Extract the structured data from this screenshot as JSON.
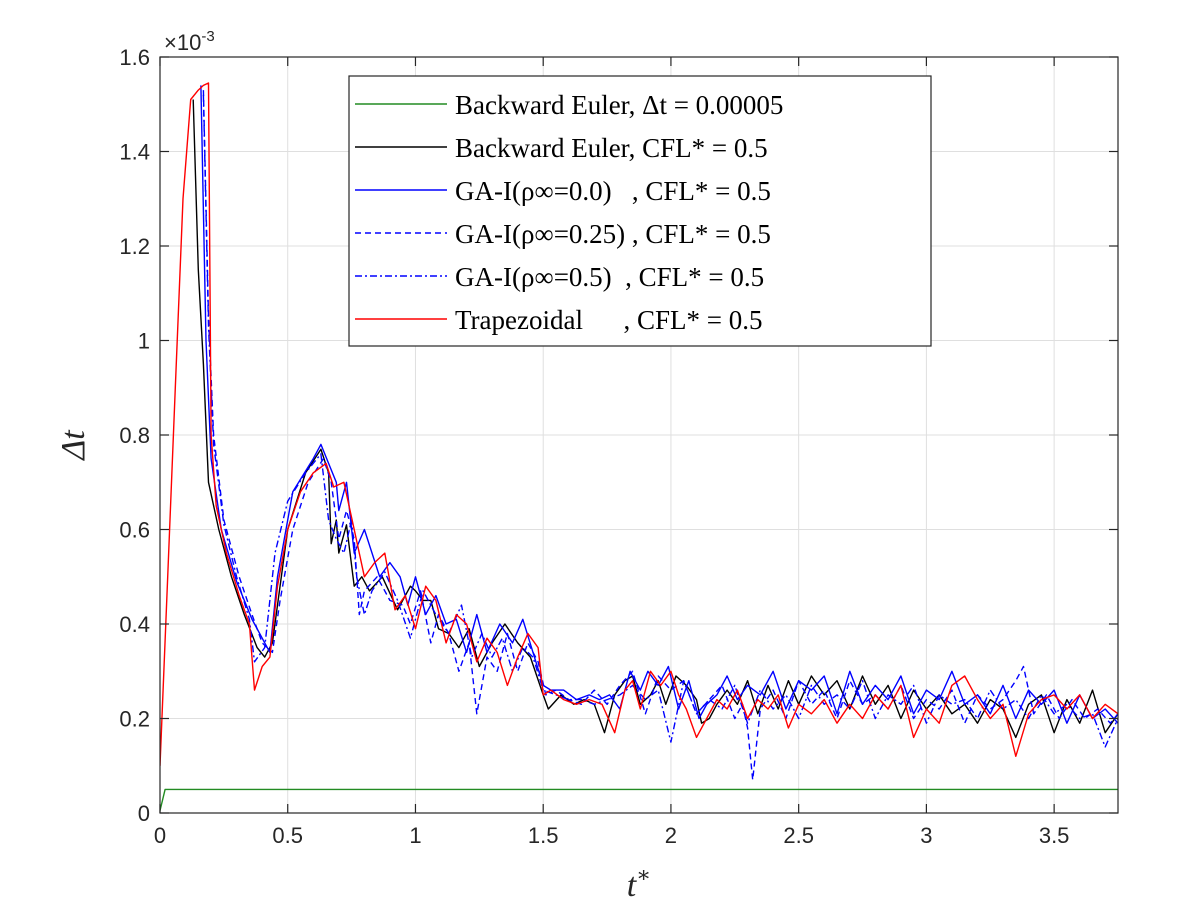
{
  "chart_data": {
    "type": "line",
    "title": "",
    "xlabel": "t*",
    "ylabel": "Δt",
    "y_scale_label": "×10^-3",
    "xlim": [
      0,
      3.75
    ],
    "ylim": [
      0,
      1.6
    ],
    "grid": true,
    "legend_position": "top-center",
    "x_ticks": [
      "0",
      "0.5",
      "1",
      "1.5",
      "2",
      "2.5",
      "3",
      "3.5"
    ],
    "y_ticks": [
      "0",
      "0.2",
      "0.4",
      "0.6",
      "0.8",
      "1",
      "1.2",
      "1.4",
      "1.6"
    ],
    "series": [
      {
        "name": "Backward Euler, Δt = 0.00005",
        "color": "#228B22",
        "dash": "solid",
        "x": [
          0.0,
          0.02,
          3.75
        ],
        "y": [
          0.005,
          0.05,
          0.05
        ]
      },
      {
        "name": "Backward Euler, CFL* = 0.5",
        "color": "#000000",
        "dash": "solid",
        "x": [
          0.13,
          0.15,
          0.17,
          0.19,
          0.23,
          0.28,
          0.33,
          0.38,
          0.41,
          0.44,
          0.5,
          0.57,
          0.63,
          0.66,
          0.67,
          0.69,
          0.7,
          0.73,
          0.76,
          0.79,
          0.82,
          0.87,
          0.93,
          0.98,
          1.0,
          1.03,
          1.06,
          1.09,
          1.13,
          1.17,
          1.21,
          1.25,
          1.3,
          1.35,
          1.4,
          1.45,
          1.5,
          1.52,
          1.57,
          1.62,
          1.66,
          1.7,
          1.74,
          1.78,
          1.82,
          1.85,
          1.88,
          1.92,
          1.95,
          1.98,
          2.02,
          2.06,
          2.1,
          2.12,
          2.15,
          2.18,
          2.22,
          2.26,
          2.3,
          2.34,
          2.38,
          2.42,
          2.46,
          2.5,
          2.55,
          2.6,
          2.65,
          2.7,
          2.75,
          2.8,
          2.85,
          2.9,
          2.95,
          3.0,
          3.05,
          3.1,
          3.15,
          3.2,
          3.25,
          3.3,
          3.35,
          3.4,
          3.45,
          3.5,
          3.55,
          3.6,
          3.65,
          3.7,
          3.75
        ],
        "y": [
          1.51,
          1.15,
          0.95,
          0.7,
          0.6,
          0.5,
          0.42,
          0.35,
          0.33,
          0.36,
          0.6,
          0.72,
          0.77,
          0.72,
          0.57,
          0.62,
          0.55,
          0.61,
          0.48,
          0.5,
          0.47,
          0.5,
          0.43,
          0.48,
          0.47,
          0.45,
          0.45,
          0.39,
          0.38,
          0.35,
          0.39,
          0.31,
          0.36,
          0.4,
          0.36,
          0.33,
          0.25,
          0.22,
          0.25,
          0.23,
          0.24,
          0.23,
          0.17,
          0.25,
          0.28,
          0.29,
          0.23,
          0.25,
          0.28,
          0.23,
          0.29,
          0.27,
          0.24,
          0.19,
          0.2,
          0.23,
          0.26,
          0.23,
          0.28,
          0.21,
          0.27,
          0.22,
          0.28,
          0.23,
          0.29,
          0.25,
          0.28,
          0.22,
          0.29,
          0.23,
          0.27,
          0.2,
          0.26,
          0.22,
          0.25,
          0.21,
          0.23,
          0.19,
          0.24,
          0.22,
          0.16,
          0.23,
          0.25,
          0.17,
          0.24,
          0.19,
          0.26,
          0.17,
          0.21
        ]
      },
      {
        "name": "GA-I(ρ∞=0.0) , CFL* = 0.5",
        "color": "#0000FF",
        "dash": "solid",
        "x": [
          0.16,
          0.18,
          0.2,
          0.24,
          0.3,
          0.36,
          0.4,
          0.43,
          0.46,
          0.52,
          0.6,
          0.63,
          0.66,
          0.69,
          0.7,
          0.73,
          0.76,
          0.8,
          0.86,
          0.9,
          0.94,
          0.97,
          1.0,
          1.04,
          1.08,
          1.12,
          1.16,
          1.2,
          1.24,
          1.28,
          1.33,
          1.38,
          1.42,
          1.46,
          1.5,
          1.53,
          1.58,
          1.63,
          1.68,
          1.72,
          1.76,
          1.8,
          1.84,
          1.88,
          1.91,
          1.95,
          1.99,
          2.03,
          2.07,
          2.11,
          2.14,
          2.18,
          2.22,
          2.26,
          2.3,
          2.35,
          2.4,
          2.45,
          2.5,
          2.55,
          2.6,
          2.65,
          2.7,
          2.75,
          2.8,
          2.85,
          2.9,
          2.95,
          3.0,
          3.05,
          3.1,
          3.15,
          3.2,
          3.25,
          3.3,
          3.35,
          3.4,
          3.45,
          3.5,
          3.55,
          3.6,
          3.65,
          3.7,
          3.75
        ],
        "y": [
          1.54,
          1.0,
          0.75,
          0.6,
          0.49,
          0.41,
          0.37,
          0.34,
          0.5,
          0.68,
          0.75,
          0.78,
          0.74,
          0.7,
          0.64,
          0.7,
          0.55,
          0.6,
          0.5,
          0.53,
          0.5,
          0.44,
          0.5,
          0.42,
          0.46,
          0.4,
          0.41,
          0.34,
          0.42,
          0.34,
          0.4,
          0.36,
          0.41,
          0.34,
          0.27,
          0.26,
          0.26,
          0.24,
          0.25,
          0.24,
          0.25,
          0.22,
          0.3,
          0.26,
          0.3,
          0.27,
          0.31,
          0.22,
          0.28,
          0.2,
          0.23,
          0.25,
          0.29,
          0.24,
          0.27,
          0.25,
          0.3,
          0.22,
          0.28,
          0.26,
          0.29,
          0.21,
          0.3,
          0.23,
          0.27,
          0.24,
          0.29,
          0.21,
          0.26,
          0.24,
          0.3,
          0.23,
          0.25,
          0.21,
          0.27,
          0.2,
          0.26,
          0.23,
          0.26,
          0.19,
          0.25,
          0.2,
          0.22,
          0.19
        ]
      },
      {
        "name": "GA-I(ρ∞=0.25) , CFL* = 0.5",
        "color": "#0000FF",
        "dash": "dashed",
        "x": [
          0.17,
          0.19,
          0.21,
          0.25,
          0.31,
          0.36,
          0.4,
          0.44,
          0.47,
          0.52,
          0.58,
          0.64,
          0.67,
          0.7,
          0.73,
          0.76,
          0.78,
          0.8,
          0.85,
          0.9,
          0.95,
          0.98,
          1.02,
          1.06,
          1.09,
          1.13,
          1.17,
          1.21,
          1.24,
          1.28,
          1.32,
          1.36,
          1.4,
          1.44,
          1.48,
          1.51,
          1.55,
          1.6,
          1.65,
          1.7,
          1.75,
          1.8,
          1.85,
          1.9,
          1.95,
          2.0,
          2.05,
          2.1,
          2.15,
          2.2,
          2.25,
          2.28,
          2.3,
          2.32,
          2.35,
          2.4,
          2.45,
          2.5,
          2.55,
          2.6,
          2.65,
          2.7,
          2.75,
          2.8,
          2.85,
          2.9,
          2.95,
          3.0,
          3.05,
          3.1,
          3.15,
          3.2,
          3.25,
          3.3,
          3.35,
          3.38,
          3.42,
          3.47,
          3.52,
          3.57,
          3.62,
          3.67,
          3.72,
          3.75
        ],
        "y": [
          1.53,
          1.05,
          0.8,
          0.62,
          0.5,
          0.42,
          0.36,
          0.34,
          0.45,
          0.6,
          0.7,
          0.75,
          0.7,
          0.58,
          0.64,
          0.58,
          0.42,
          0.47,
          0.5,
          0.45,
          0.44,
          0.4,
          0.47,
          0.36,
          0.42,
          0.38,
          0.3,
          0.36,
          0.21,
          0.33,
          0.3,
          0.38,
          0.3,
          0.36,
          0.32,
          0.25,
          0.26,
          0.24,
          0.23,
          0.26,
          0.23,
          0.27,
          0.3,
          0.21,
          0.29,
          0.26,
          0.28,
          0.21,
          0.24,
          0.27,
          0.2,
          0.23,
          0.18,
          0.07,
          0.22,
          0.26,
          0.2,
          0.28,
          0.23,
          0.26,
          0.2,
          0.28,
          0.23,
          0.25,
          0.22,
          0.27,
          0.2,
          0.24,
          0.22,
          0.26,
          0.19,
          0.25,
          0.22,
          0.24,
          0.28,
          0.31,
          0.21,
          0.25,
          0.2,
          0.24,
          0.2,
          0.22,
          0.19,
          0.21
        ]
      },
      {
        "name": "GA-I(ρ∞=0.5) , CFL* = 0.5",
        "color": "#0000FF",
        "dash": "dashdot",
        "x": [
          0.17,
          0.19,
          0.21,
          0.25,
          0.3,
          0.35,
          0.37,
          0.41,
          0.45,
          0.5,
          0.57,
          0.63,
          0.66,
          0.69,
          0.72,
          0.75,
          0.77,
          0.8,
          0.83,
          0.88,
          0.93,
          0.98,
          1.03,
          1.08,
          1.13,
          1.18,
          1.22,
          1.26,
          1.3,
          1.34,
          1.38,
          1.42,
          1.46,
          1.5,
          1.55,
          1.6,
          1.65,
          1.7,
          1.75,
          1.8,
          1.85,
          1.9,
          1.95,
          2.0,
          2.05,
          2.1,
          2.15,
          2.2,
          2.25,
          2.3,
          2.35,
          2.4,
          2.45,
          2.5,
          2.55,
          2.6,
          2.65,
          2.7,
          2.75,
          2.8,
          2.85,
          2.9,
          2.95,
          3.0,
          3.05,
          3.1,
          3.15,
          3.2,
          3.25,
          3.3,
          3.35,
          3.4,
          3.45,
          3.5,
          3.55,
          3.6,
          3.65,
          3.7,
          3.75
        ],
        "y": [
          1.52,
          1.03,
          0.78,
          0.61,
          0.5,
          0.41,
          0.32,
          0.35,
          0.55,
          0.66,
          0.72,
          0.76,
          0.62,
          0.58,
          0.55,
          0.62,
          0.5,
          0.42,
          0.47,
          0.51,
          0.45,
          0.37,
          0.47,
          0.42,
          0.38,
          0.44,
          0.33,
          0.38,
          0.33,
          0.37,
          0.3,
          0.35,
          0.33,
          0.26,
          0.25,
          0.24,
          0.24,
          0.23,
          0.24,
          0.25,
          0.27,
          0.24,
          0.26,
          0.15,
          0.28,
          0.21,
          0.24,
          0.22,
          0.27,
          0.19,
          0.26,
          0.22,
          0.25,
          0.2,
          0.27,
          0.23,
          0.25,
          0.22,
          0.28,
          0.2,
          0.25,
          0.23,
          0.27,
          0.19,
          0.25,
          0.23,
          0.24,
          0.2,
          0.26,
          0.22,
          0.24,
          0.2,
          0.25,
          0.21,
          0.23,
          0.2,
          0.21,
          0.14,
          0.2
        ]
      },
      {
        "name": "Trapezoidal , CFL* = 0.5",
        "color": "#FF0000",
        "dash": "solid",
        "x": [
          0.0,
          0.03,
          0.06,
          0.09,
          0.12,
          0.15,
          0.17,
          0.19,
          0.2,
          0.22,
          0.26,
          0.31,
          0.35,
          0.37,
          0.4,
          0.43,
          0.46,
          0.5,
          0.55,
          0.6,
          0.65,
          0.68,
          0.72,
          0.76,
          0.8,
          0.84,
          0.88,
          0.92,
          0.96,
          1.0,
          1.04,
          1.08,
          1.12,
          1.16,
          1.2,
          1.24,
          1.28,
          1.32,
          1.36,
          1.4,
          1.44,
          1.48,
          1.5,
          1.53,
          1.58,
          1.63,
          1.68,
          1.73,
          1.78,
          1.82,
          1.85,
          1.88,
          1.92,
          1.96,
          2.0,
          2.03,
          2.06,
          2.1,
          2.14,
          2.18,
          2.22,
          2.26,
          2.3,
          2.34,
          2.38,
          2.42,
          2.46,
          2.5,
          2.55,
          2.6,
          2.65,
          2.7,
          2.75,
          2.8,
          2.85,
          2.9,
          2.95,
          3.0,
          3.05,
          3.1,
          3.15,
          3.2,
          3.25,
          3.3,
          3.35,
          3.4,
          3.45,
          3.5,
          3.55,
          3.6,
          3.65,
          3.7,
          3.75
        ],
        "y": [
          0.1,
          0.5,
          0.9,
          1.3,
          1.51,
          1.53,
          1.54,
          1.545,
          0.8,
          0.65,
          0.55,
          0.46,
          0.4,
          0.26,
          0.31,
          0.33,
          0.48,
          0.6,
          0.68,
          0.72,
          0.74,
          0.69,
          0.7,
          0.6,
          0.5,
          0.53,
          0.55,
          0.43,
          0.46,
          0.39,
          0.48,
          0.45,
          0.36,
          0.42,
          0.4,
          0.32,
          0.37,
          0.34,
          0.27,
          0.33,
          0.38,
          0.35,
          0.25,
          0.26,
          0.24,
          0.23,
          0.24,
          0.23,
          0.17,
          0.26,
          0.28,
          0.22,
          0.3,
          0.27,
          0.3,
          0.25,
          0.22,
          0.16,
          0.2,
          0.24,
          0.22,
          0.26,
          0.2,
          0.24,
          0.22,
          0.25,
          0.18,
          0.23,
          0.21,
          0.24,
          0.19,
          0.23,
          0.2,
          0.25,
          0.22,
          0.27,
          0.16,
          0.22,
          0.19,
          0.27,
          0.29,
          0.24,
          0.2,
          0.23,
          0.12,
          0.21,
          0.24,
          0.25,
          0.22,
          0.25,
          0.2,
          0.23,
          0.21
        ]
      }
    ],
    "legend": [
      {
        "label": "Backward Euler, Δt = 0.00005",
        "color": "#228B22",
        "dash": "solid"
      },
      {
        "label": "Backward Euler, CFL* = 0.5",
        "color": "#000000",
        "dash": "solid"
      },
      {
        "label": "GA-I(ρ∞=0.0)   , CFL* = 0.5",
        "color": "#0000FF",
        "dash": "solid"
      },
      {
        "label": "GA-I(ρ∞=0.25) , CFL* = 0.5",
        "color": "#0000FF",
        "dash": "dashed"
      },
      {
        "label": "GA-I(ρ∞=0.5)  , CFL* = 0.5",
        "color": "#0000FF",
        "dash": "dashdot"
      },
      {
        "label": "Trapezoidal      , CFL* = 0.5",
        "color": "#FF0000",
        "dash": "solid"
      }
    ]
  }
}
